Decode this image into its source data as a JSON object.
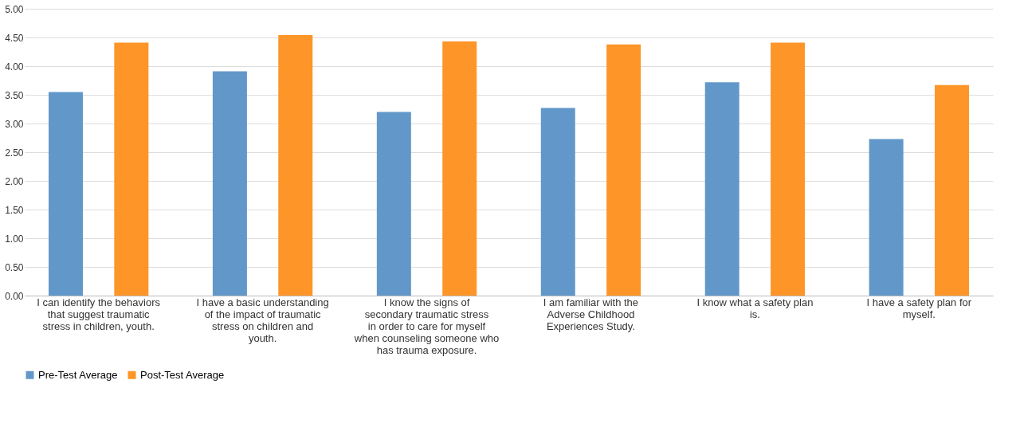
{
  "chart_data": {
    "type": "bar",
    "categories": [
      "I can identify the behaviors that suggest traumatic stress in children, youth.",
      "I have a basic understanding of the impact of traumatic stress on children and youth.",
      "I know the signs of secondary traumatic stress in order to care for myself when counseling someone who has trauma exposure.",
      "I am familiar with the Adverse Childhood Experiences Study.",
      "I know what a safety plan is.",
      "I have a safety plan for myself."
    ],
    "series": [
      {
        "name": "Pre-Test Average",
        "color": "#6298c9",
        "values": [
          3.55,
          3.91,
          3.2,
          3.27,
          3.72,
          2.73
        ]
      },
      {
        "name": "Post-Test Average",
        "color": "#fd9528",
        "values": [
          4.41,
          4.54,
          4.43,
          4.38,
          4.41,
          3.67
        ]
      }
    ],
    "ylim": [
      0,
      5
    ],
    "yticks": [
      {
        "value": 0,
        "label": "0.00"
      },
      {
        "value": 0.5,
        "label": "0.50"
      },
      {
        "value": 1,
        "label": "1.00"
      },
      {
        "value": 1.5,
        "label": "1.50"
      },
      {
        "value": 2,
        "label": "2.00"
      },
      {
        "value": 2.5,
        "label": "2.50"
      },
      {
        "value": 3,
        "label": "3.00"
      },
      {
        "value": 3.5,
        "label": "3.50"
      },
      {
        "value": 4,
        "label": "4.00"
      },
      {
        "value": 4.5,
        "label": "4.50"
      },
      {
        "value": 5,
        "label": "5.00"
      }
    ],
    "grid": "y",
    "legend": "bottom"
  }
}
